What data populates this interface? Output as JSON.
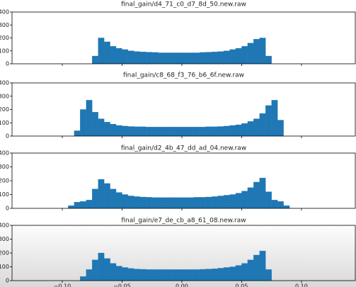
{
  "chart_data": [
    {
      "type": "histogram",
      "title": "final_gain/d4_71_c0_d7_8d_50.new.raw",
      "color": "#1f77b4",
      "bins": [
        -0.1,
        -0.095,
        -0.09,
        -0.085,
        -0.08,
        -0.075,
        -0.07,
        -0.065,
        -0.06,
        -0.055,
        -0.05,
        -0.045,
        -0.04,
        -0.035,
        -0.03,
        -0.025,
        -0.02,
        -0.015,
        -0.01,
        -0.005,
        0,
        0.005,
        0.01,
        0.015,
        0.02,
        0.025,
        0.03,
        0.035,
        0.04,
        0.045,
        0.05,
        0.055,
        0.06,
        0.065,
        0.07,
        0.075,
        0.08,
        0.085,
        0.09,
        0.095
      ],
      "values": [
        0,
        0,
        0,
        0,
        0,
        60,
        200,
        170,
        135,
        120,
        110,
        100,
        95,
        92,
        90,
        88,
        85,
        85,
        85,
        85,
        85,
        85,
        85,
        88,
        90,
        92,
        95,
        100,
        110,
        120,
        135,
        160,
        190,
        200,
        60,
        0,
        0,
        0,
        0
      ],
      "xlim": [
        -0.142,
        0.145
      ],
      "ylim": [
        0,
        400
      ],
      "yticks": [
        0,
        100,
        200,
        300,
        400
      ]
    },
    {
      "type": "histogram",
      "title": "final_gain/c8_68_f3_76_b6_6f.new.raw",
      "color": "#1f77b4",
      "bins": [
        -0.1,
        -0.095,
        -0.09,
        -0.085,
        -0.08,
        -0.075,
        -0.07,
        -0.065,
        -0.06,
        -0.055,
        -0.05,
        -0.045,
        -0.04,
        -0.035,
        -0.03,
        -0.025,
        -0.02,
        -0.015,
        -0.01,
        -0.005,
        0,
        0.005,
        0.01,
        0.015,
        0.02,
        0.025,
        0.03,
        0.035,
        0.04,
        0.045,
        0.05,
        0.055,
        0.06,
        0.065,
        0.07,
        0.075,
        0.08,
        0.085,
        0.09,
        0.095
      ],
      "values": [
        0,
        0,
        40,
        200,
        270,
        180,
        130,
        105,
        90,
        80,
        75,
        72,
        70,
        70,
        68,
        68,
        68,
        68,
        68,
        68,
        68,
        68,
        68,
        68,
        70,
        70,
        72,
        75,
        80,
        85,
        95,
        110,
        130,
        170,
        230,
        270,
        120,
        0,
        0
      ],
      "xlim": [
        -0.142,
        0.145
      ],
      "ylim": [
        0,
        400
      ],
      "yticks": [
        0,
        100,
        200,
        300,
        400
      ]
    },
    {
      "type": "histogram",
      "title": "final_gain/d2_4b_47_dd_ad_04.new.raw",
      "color": "#1f77b4",
      "bins": [
        -0.1,
        -0.095,
        -0.09,
        -0.085,
        -0.08,
        -0.075,
        -0.07,
        -0.065,
        -0.06,
        -0.055,
        -0.05,
        -0.045,
        -0.04,
        -0.035,
        -0.03,
        -0.025,
        -0.02,
        -0.015,
        -0.01,
        -0.005,
        0,
        0.005,
        0.01,
        0.015,
        0.02,
        0.025,
        0.03,
        0.035,
        0.04,
        0.045,
        0.05,
        0.055,
        0.06,
        0.065,
        0.07,
        0.075,
        0.08,
        0.085,
        0.09,
        0.095
      ],
      "values": [
        0,
        20,
        45,
        50,
        60,
        140,
        210,
        180,
        140,
        115,
        100,
        90,
        85,
        82,
        80,
        78,
        78,
        78,
        78,
        78,
        78,
        78,
        80,
        80,
        82,
        85,
        90,
        95,
        100,
        110,
        125,
        150,
        190,
        220,
        120,
        60,
        50,
        20,
        0
      ],
      "xlim": [
        -0.142,
        0.145
      ],
      "ylim": [
        0,
        400
      ],
      "yticks": [
        0,
        100,
        200,
        300,
        400
      ]
    },
    {
      "type": "histogram",
      "title": "final_gain/e7_de_cb_a8_61_08.new.raw",
      "color": "#1f77b4",
      "bins": [
        -0.1,
        -0.095,
        -0.09,
        -0.085,
        -0.08,
        -0.075,
        -0.07,
        -0.065,
        -0.06,
        -0.055,
        -0.05,
        -0.045,
        -0.04,
        -0.035,
        -0.03,
        -0.025,
        -0.02,
        -0.015,
        -0.01,
        -0.005,
        0,
        0.005,
        0.01,
        0.015,
        0.02,
        0.025,
        0.03,
        0.035,
        0.04,
        0.045,
        0.05,
        0.055,
        0.06,
        0.065,
        0.07,
        0.075,
        0.08,
        0.085,
        0.09,
        0.095
      ],
      "values": [
        0,
        0,
        0,
        30,
        80,
        150,
        200,
        160,
        125,
        105,
        95,
        88,
        84,
        82,
        80,
        80,
        80,
        80,
        80,
        80,
        80,
        80,
        80,
        82,
        84,
        86,
        90,
        95,
        100,
        110,
        125,
        150,
        185,
        215,
        80,
        0,
        0,
        0,
        0
      ],
      "xlim": [
        -0.142,
        0.145
      ],
      "ylim": [
        0,
        400
      ],
      "yticks": [
        0,
        100,
        200,
        300,
        400
      ],
      "xticks": [
        {
          "value": -0.1,
          "label": "−0.10"
        },
        {
          "value": -0.05,
          "label": "−0.05"
        },
        {
          "value": 0,
          "label": "0.00"
        },
        {
          "value": 0.05,
          "label": "0.05"
        },
        {
          "value": 0.1,
          "label": "0.10"
        }
      ]
    }
  ]
}
